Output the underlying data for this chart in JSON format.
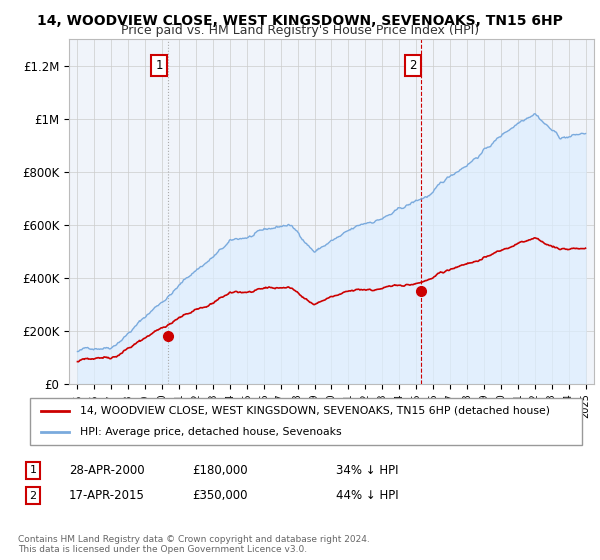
{
  "title": "14, WOODVIEW CLOSE, WEST KINGSDOWN, SEVENOAKS, TN15 6HP",
  "subtitle": "Price paid vs. HM Land Registry's House Price Index (HPI)",
  "legend_line1": "14, WOODVIEW CLOSE, WEST KINGSDOWN, SEVENOAKS, TN15 6HP (detached house)",
  "legend_line2": "HPI: Average price, detached house, Sevenoaks",
  "annotation1_label": "1",
  "annotation1_date": "28-APR-2000",
  "annotation1_price": "£180,000",
  "annotation1_hpi": "34% ↓ HPI",
  "annotation2_label": "2",
  "annotation2_date": "17-APR-2015",
  "annotation2_price": "£350,000",
  "annotation2_hpi": "44% ↓ HPI",
  "footnote": "Contains HM Land Registry data © Crown copyright and database right 2024.\nThis data is licensed under the Open Government Licence v3.0.",
  "red_color": "#cc0000",
  "blue_color": "#7aaadd",
  "blue_fill": "#ddeeff",
  "bg_color": "#f0f4fa",
  "ylim": [
    0,
    1300000
  ],
  "yticks": [
    0,
    200000,
    400000,
    600000,
    800000,
    1000000,
    1200000
  ],
  "ytick_labels": [
    "£0",
    "£200K",
    "£400K",
    "£600K",
    "£800K",
    "£1M",
    "£1.2M"
  ],
  "x_start_year": 1995,
  "x_end_year": 2025,
  "sale1_year": 2000.32,
  "sale1_price": 180000,
  "sale2_year": 2015.29,
  "sale2_price": 350000
}
